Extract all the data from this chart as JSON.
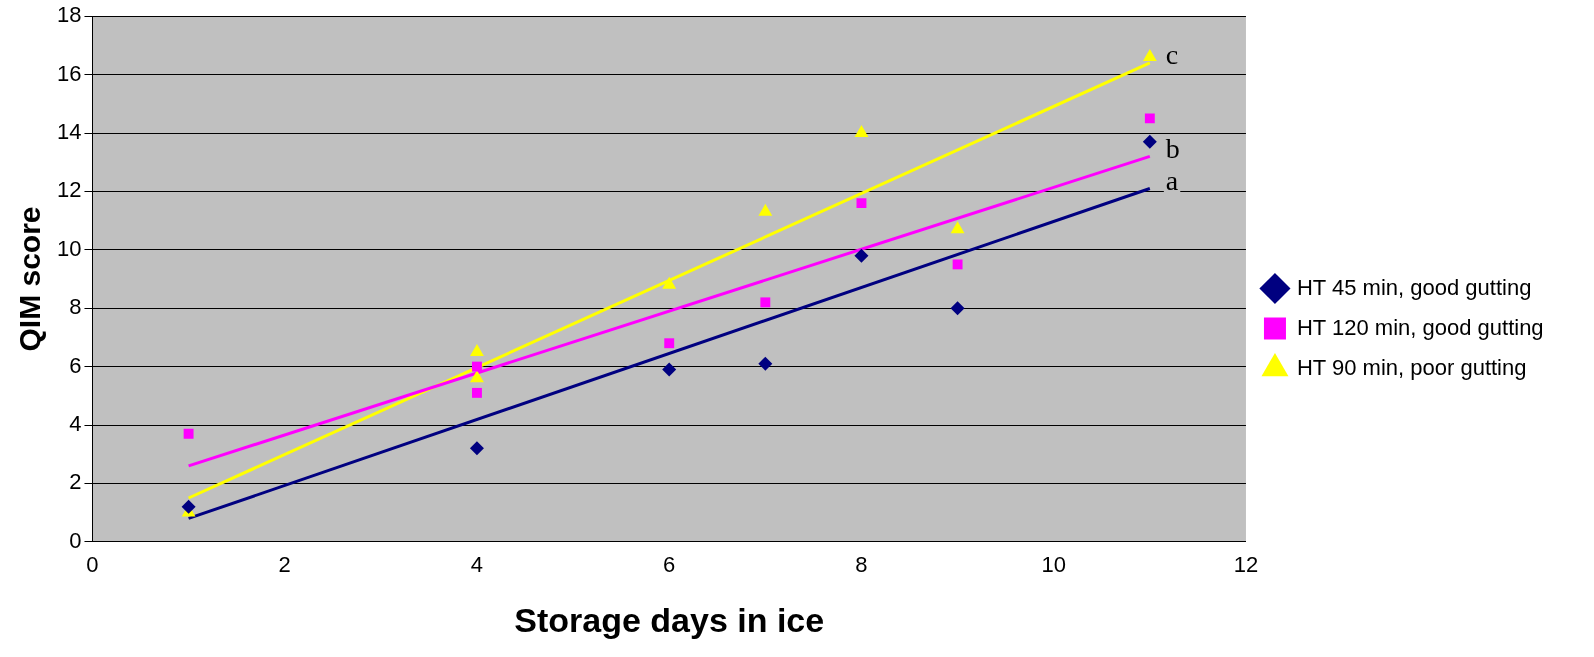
{
  "chart_data": {
    "type": "scatter",
    "xlabel": "Storage days in ice",
    "ylabel": "QIM score",
    "xlim": [
      0,
      12
    ],
    "xticks": [
      0,
      2,
      4,
      6,
      8,
      10,
      12
    ],
    "ylim": [
      0,
      18
    ],
    "yticks": [
      0,
      2,
      4,
      6,
      8,
      10,
      12,
      14,
      16,
      18
    ],
    "grid": "y",
    "legend": "right",
    "series": [
      {
        "name": "HT 45 min, good gutting",
        "color": "#000080",
        "marker": "diamond",
        "x": [
          1,
          4,
          6,
          7,
          8,
          9,
          11
        ],
        "values": [
          1.2,
          3.2,
          5.9,
          6.1,
          9.8,
          8.0,
          13.7
        ]
      },
      {
        "name": "HT 120 min, good gutting",
        "color": "#ff00ff",
        "marker": "square",
        "x": [
          1,
          4,
          4,
          6,
          7,
          8,
          9,
          11
        ],
        "values": [
          3.7,
          6.0,
          5.1,
          6.8,
          8.2,
          11.6,
          9.5,
          14.5
        ]
      },
      {
        "name": "HT 90 min, poor gutting",
        "color": "#ffff00",
        "marker": "triangle",
        "x": [
          1,
          4,
          4,
          6,
          7,
          8,
          9,
          11
        ],
        "values": [
          1.0,
          6.5,
          5.6,
          8.8,
          11.3,
          14.0,
          10.7,
          16.6
        ]
      },
      {
        "type": "line",
        "color": "#000080",
        "marker": "none",
        "x": [
          1,
          11
        ],
        "values": [
          0.8,
          12.1
        ]
      },
      {
        "type": "line",
        "color": "#ff00ff",
        "marker": "none",
        "x": [
          1,
          11
        ],
        "values": [
          2.6,
          13.2
        ]
      },
      {
        "type": "line",
        "color": "#ffff00",
        "marker": "none",
        "x": [
          1,
          11
        ],
        "values": [
          1.5,
          16.4
        ]
      }
    ],
    "annotations": [
      "a",
      "b",
      "c"
    ]
  }
}
